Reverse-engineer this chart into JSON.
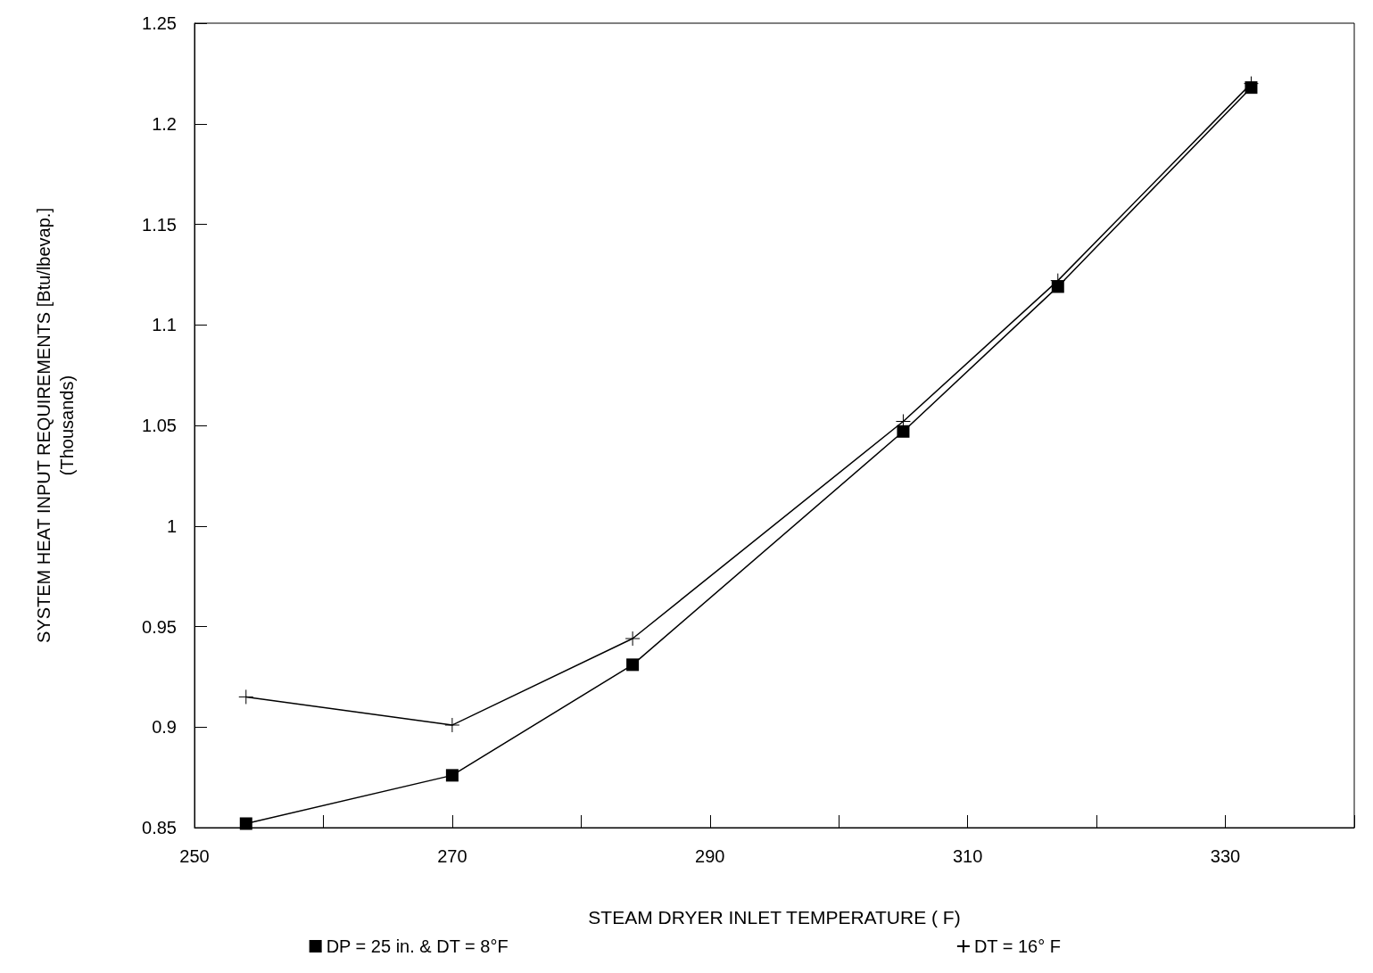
{
  "chart_data": {
    "type": "line",
    "xlabel": "STEAM DRYER INLET TEMPERATURE ( F)",
    "ylabel": "SYSTEM HEAT INPUT REQUIREMENTS [Btu/lbevap.]\n(Thousands)",
    "x": [
      254,
      270,
      284,
      305,
      317,
      332
    ],
    "series": [
      {
        "name": "DP = 25 in. & DT = 8°F",
        "color": "#000000",
        "marker": "square",
        "values": [
          0.852,
          0.876,
          0.931,
          1.047,
          1.119,
          1.218
        ]
      },
      {
        "name": "DT = 16° F",
        "color": "#000000",
        "marker": "cross",
        "values": [
          0.915,
          0.901,
          0.944,
          1.052,
          1.122,
          1.22
        ]
      }
    ],
    "xlim": [
      250,
      340
    ],
    "xticks": [
      250,
      {
        "value": 260,
        "label": null
      },
      270,
      {
        "value": 280,
        "label": null
      },
      290,
      {
        "value": 300,
        "label": null
      },
      310,
      {
        "value": 320,
        "label": null
      },
      330,
      {
        "value": 340,
        "label": null
      }
    ],
    "ylim": [
      0.85,
      1.25
    ],
    "yticks": [
      0.85,
      0.9,
      0.95,
      1,
      1.05,
      1.1,
      1.15,
      1.2,
      1.25
    ],
    "grid": false,
    "legend": "bottom",
    "line_style": "solid"
  }
}
